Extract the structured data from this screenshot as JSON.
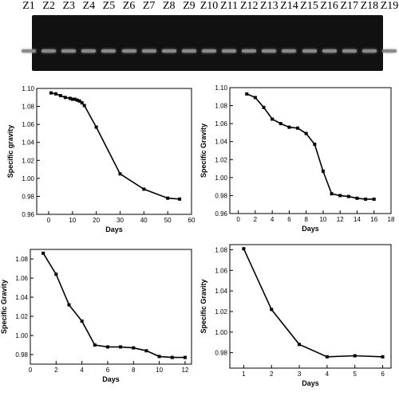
{
  "gel": {
    "lanes": [
      "Z1",
      "Z2",
      "Z3",
      "Z4",
      "Z5",
      "Z6",
      "Z7",
      "Z8",
      "Z9",
      "Z10",
      "Z11",
      "Z12",
      "Z13",
      "Z14",
      "Z15",
      "Z16",
      "Z17",
      "Z18",
      "Z19"
    ]
  },
  "chart_data": [
    {
      "type": "line",
      "xlabel": "Days",
      "ylabel": "Specific gravity",
      "xlim": [
        -5,
        60
      ],
      "ylim": [
        0.96,
        1.1
      ],
      "xticks": [
        0,
        10,
        20,
        30,
        40,
        50,
        60
      ],
      "yticks": [
        0.96,
        0.98,
        1.0,
        1.02,
        1.04,
        1.06,
        1.08,
        1.1
      ],
      "x": [
        1,
        3,
        5,
        7,
        9,
        10,
        11,
        12,
        13,
        14,
        15,
        20,
        30,
        40,
        50,
        55
      ],
      "y": [
        1.095,
        1.094,
        1.092,
        1.09,
        1.089,
        1.088,
        1.088,
        1.087,
        1.086,
        1.084,
        1.081,
        1.057,
        1.005,
        0.988,
        0.978,
        0.977
      ]
    },
    {
      "type": "line",
      "xlabel": "Days",
      "ylabel": "Specific Gravity",
      "xlim": [
        -1,
        18
      ],
      "ylim": [
        0.96,
        1.1
      ],
      "xticks": [
        0,
        2,
        4,
        6,
        8,
        10,
        12,
        14,
        16,
        18
      ],
      "yticks": [
        0.96,
        0.98,
        1.0,
        1.02,
        1.04,
        1.06,
        1.08,
        1.1
      ],
      "x": [
        1,
        2,
        3,
        4,
        5,
        6,
        7,
        8,
        9,
        10,
        11,
        12,
        13,
        14,
        15,
        16
      ],
      "y": [
        1.093,
        1.089,
        1.078,
        1.065,
        1.06,
        1.056,
        1.055,
        1.049,
        1.037,
        1.007,
        0.982,
        0.98,
        0.979,
        0.977,
        0.976,
        0.976
      ]
    },
    {
      "type": "line",
      "xlabel": "Days",
      "ylabel": "Specific Gravity",
      "xlim": [
        0,
        12.5
      ],
      "ylim": [
        0.97,
        1.09
      ],
      "xticks": [
        0,
        2,
        4,
        6,
        8,
        10,
        12
      ],
      "yticks": [
        0.98,
        1.0,
        1.02,
        1.04,
        1.06,
        1.08
      ],
      "x": [
        1,
        2,
        3,
        4,
        5,
        6,
        7,
        8,
        9,
        10,
        11,
        12
      ],
      "y": [
        1.086,
        1.064,
        1.032,
        1.015,
        0.99,
        0.988,
        0.988,
        0.987,
        0.984,
        0.978,
        0.977,
        0.977
      ]
    },
    {
      "type": "line",
      "xlabel": "Days",
      "ylabel": "Specific Gravity",
      "xlim": [
        0.5,
        6.3
      ],
      "ylim": [
        0.965,
        1.085
      ],
      "xticks": [
        1,
        2,
        3,
        4,
        5,
        6
      ],
      "yticks": [
        0.98,
        1.0,
        1.02,
        1.04,
        1.06,
        1.08
      ],
      "x": [
        1,
        2,
        3,
        4,
        5,
        6
      ],
      "y": [
        1.081,
        1.022,
        0.988,
        0.976,
        0.977,
        0.976
      ]
    }
  ]
}
